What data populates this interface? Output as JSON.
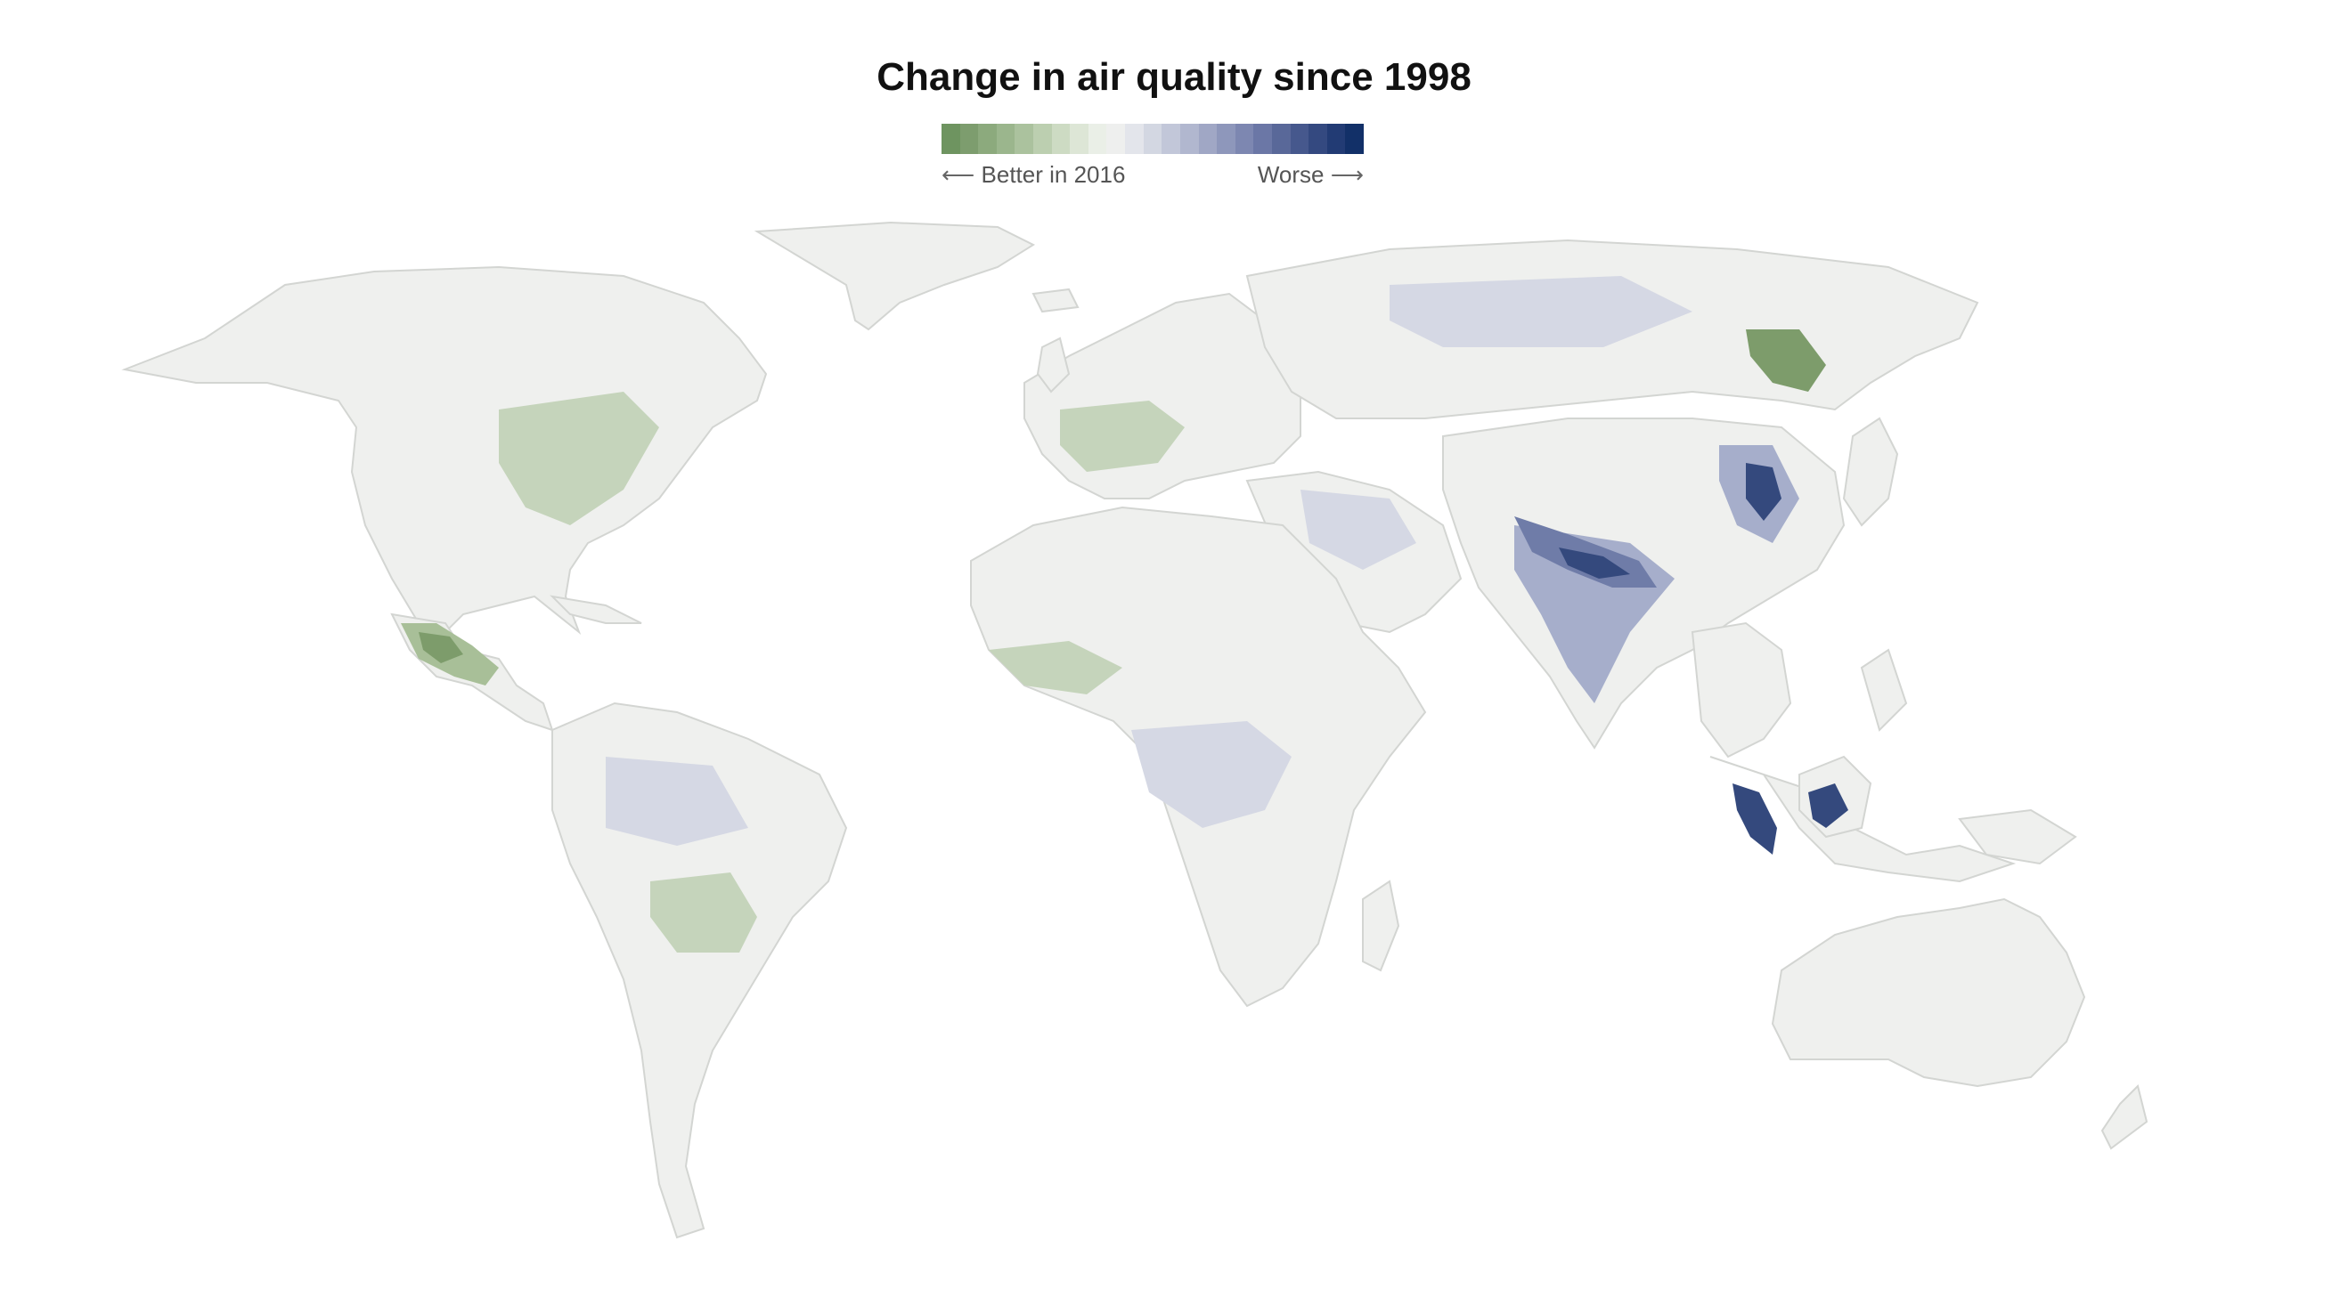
{
  "title": "Change in air quality since 1998",
  "legend": {
    "left_label": "Better in 2016",
    "right_label": "Worse",
    "left_arrow": "⟵",
    "right_arrow": "⟶",
    "colors": [
      "#6e9460",
      "#7d9d6e",
      "#8caa7d",
      "#9bb68d",
      "#abc29e",
      "#bccfb0",
      "#cddbc3",
      "#dde6d6",
      "#eaefe7",
      "#eeefee",
      "#e3e5eb",
      "#d3d7e2",
      "#c2c7d9",
      "#b1b7cf",
      "#a0a7c5",
      "#8e97bb",
      "#7d87b1",
      "#6b77a6",
      "#596899",
      "#46588d",
      "#344980",
      "#223b74",
      "#123068"
    ]
  },
  "map": {
    "background": "#ffffff",
    "land_color": "#eff0ee",
    "border_color": "#d3d5d2",
    "better_color": "#7d9c6b",
    "worse_color": "#34497d"
  }
}
